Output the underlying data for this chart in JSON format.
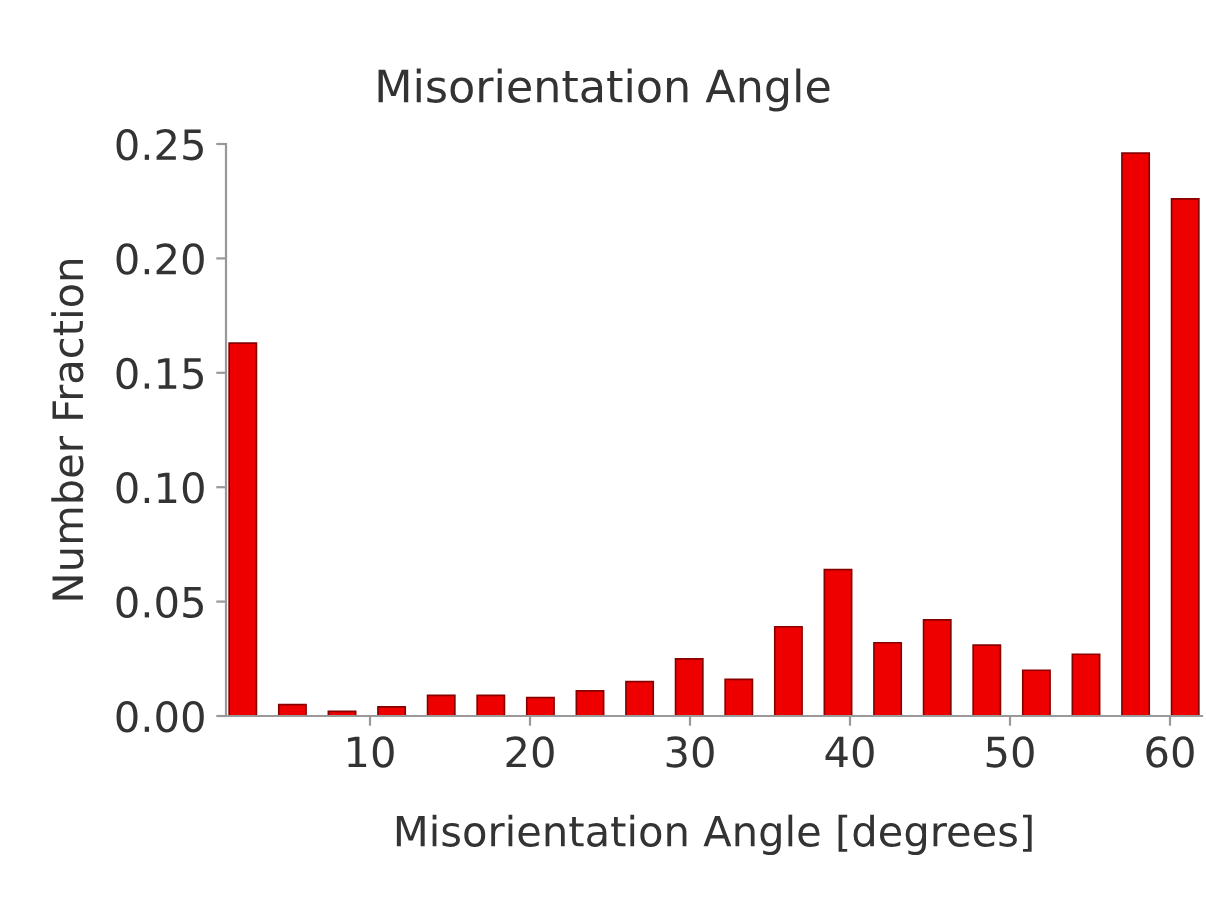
{
  "chart_data": {
    "type": "histogram",
    "title": "Misorientation Angle",
    "xlabel": "Misorientation Angle [degrees]",
    "ylabel": "Number Fraction",
    "bins": [
      0.5,
      3.6,
      6.7,
      9.8,
      12.9,
      16.0,
      19.1,
      22.2,
      25.3,
      28.4,
      31.5,
      34.6,
      37.7,
      40.8,
      43.9,
      47.0,
      50.1,
      53.2,
      56.3,
      59.4,
      62.5
    ],
    "values": [
      0.163,
      0.005,
      0.002,
      0.004,
      0.009,
      0.009,
      0.008,
      0.011,
      0.015,
      0.025,
      0.016,
      0.039,
      0.064,
      0.032,
      0.042,
      0.031,
      0.02,
      0.027,
      0.246,
      0.226
    ],
    "color": "#ee0000",
    "xlim": [
      1,
      62
    ],
    "xticks": [
      10,
      20,
      30,
      40,
      50,
      60
    ],
    "ylim": [
      0,
      0.25
    ],
    "yticks": [
      {
        "value": 0,
        "label": "0.00"
      },
      {
        "value": 0.05,
        "label": "0.05"
      },
      {
        "value": 0.1,
        "label": "0.10"
      },
      {
        "value": 0.15,
        "label": "0.15"
      },
      {
        "value": 0.2,
        "label": "0.20"
      },
      {
        "value": 0.25,
        "label": "0.25"
      }
    ],
    "grid": false
  }
}
